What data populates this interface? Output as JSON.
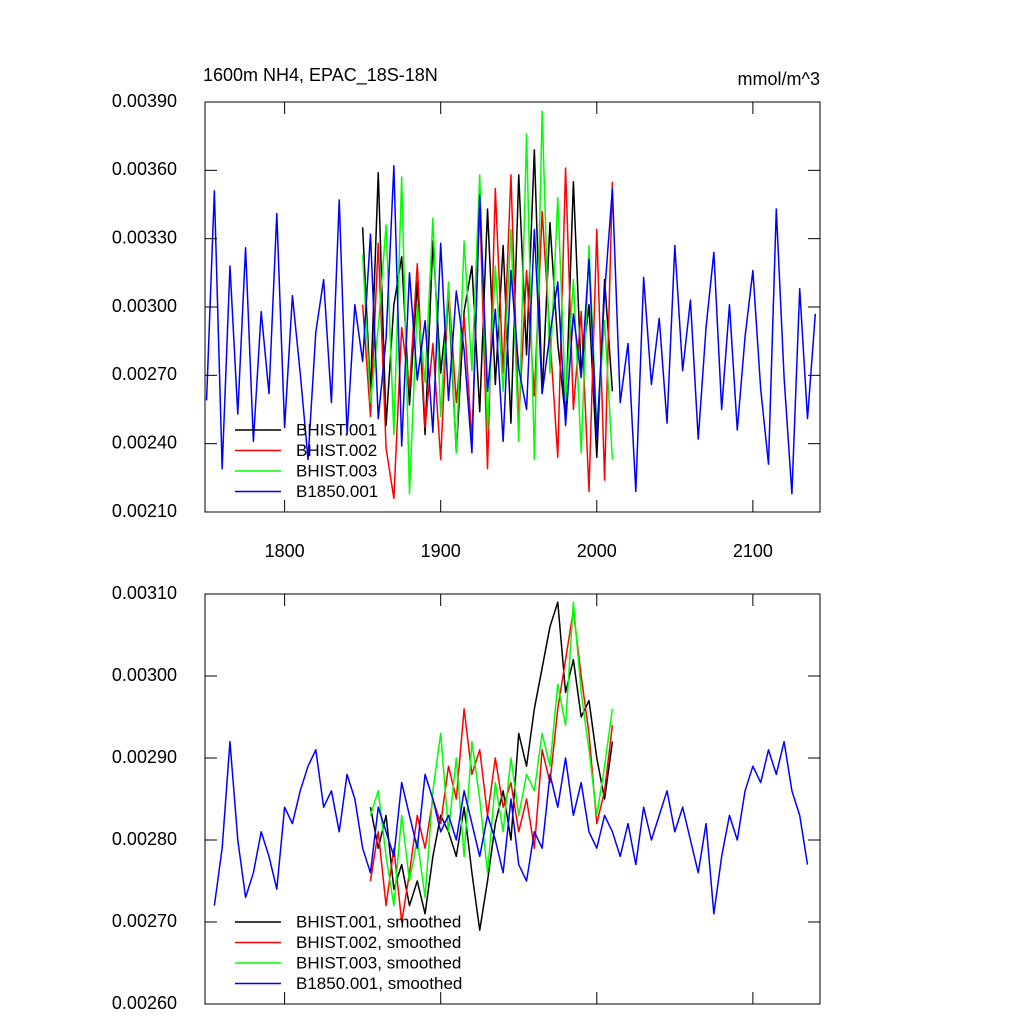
{
  "chart_data": [
    {
      "type": "line",
      "title": "1600m NH4, EPAC_18S-18N",
      "units": "mmol/m^3",
      "xlim": [
        1749,
        2143
      ],
      "xticks": [
        1800,
        1900,
        2000,
        2100
      ],
      "ylim": [
        0.0021,
        0.0039
      ],
      "yticks": [
        {
          "value": 0.0021,
          "label": "0.00210"
        },
        {
          "value": 0.0024,
          "label": "0.00240"
        },
        {
          "value": 0.0027,
          "label": "0.00270"
        },
        {
          "value": 0.003,
          "label": "0.00300"
        },
        {
          "value": 0.0033,
          "label": "0.00330"
        },
        {
          "value": 0.0036,
          "label": "0.00360"
        },
        {
          "value": 0.0039,
          "label": "0.00390"
        }
      ],
      "legend": "lower left",
      "series": [
        {
          "name": "BHIST.001",
          "color": "#000000",
          "x": [
            1850,
            1855,
            1860,
            1865,
            1870,
            1875,
            1880,
            1885,
            1890,
            1895,
            1900,
            1905,
            1910,
            1915,
            1920,
            1925,
            1930,
            1935,
            1940,
            1945,
            1950,
            1955,
            1960,
            1965,
            1970,
            1975,
            1980,
            1985,
            1990,
            1995,
            2000,
            2005,
            2010
          ],
          "values": [
            0.00335,
            0.00262,
            0.00359,
            0.00248,
            0.00301,
            0.00322,
            0.00257,
            0.00311,
            0.00244,
            0.00329,
            0.00271,
            0.00305,
            0.00236,
            0.00298,
            0.00318,
            0.00254,
            0.00343,
            0.00266,
            0.00327,
            0.00249,
            0.00358,
            0.00279,
            0.00369,
            0.00262,
            0.00337,
            0.00284,
            0.00251,
            0.00355,
            0.00271,
            0.00301,
            0.00234,
            0.00312,
            0.00263
          ]
        },
        {
          "name": "BHIST.002",
          "color": "#ff0000",
          "x": [
            1850,
            1855,
            1860,
            1865,
            1870,
            1875,
            1880,
            1885,
            1890,
            1895,
            1900,
            1905,
            1910,
            1915,
            1920,
            1925,
            1930,
            1935,
            1940,
            1945,
            1950,
            1955,
            1960,
            1965,
            1970,
            1975,
            1980,
            1985,
            1990,
            1995,
            2000,
            2005,
            2010
          ],
          "values": [
            0.00301,
            0.00252,
            0.00328,
            0.00238,
            0.00216,
            0.00291,
            0.00264,
            0.00319,
            0.00247,
            0.00284,
            0.00233,
            0.00309,
            0.00258,
            0.00296,
            0.00241,
            0.00346,
            0.00229,
            0.00352,
            0.00271,
            0.00358,
            0.00249,
            0.00316,
            0.00261,
            0.00342,
            0.00287,
            0.00234,
            0.00361,
            0.00255,
            0.00298,
            0.00219,
            0.00334,
            0.00224,
            0.00355
          ]
        },
        {
          "name": "BHIST.003",
          "color": "#00ff00",
          "x": [
            1850,
            1855,
            1860,
            1865,
            1870,
            1875,
            1880,
            1885,
            1890,
            1895,
            1900,
            1905,
            1910,
            1915,
            1920,
            1925,
            1930,
            1935,
            1940,
            1945,
            1950,
            1955,
            1960,
            1965,
            1970,
            1975,
            1980,
            1985,
            1990,
            1995,
            2000,
            2005,
            2010
          ],
          "values": [
            0.00323,
            0.00258,
            0.00291,
            0.00336,
            0.00244,
            0.00357,
            0.00218,
            0.00301,
            0.00267,
            0.00339,
            0.00252,
            0.00311,
            0.00236,
            0.00329,
            0.00272,
            0.00358,
            0.00246,
            0.00318,
            0.00263,
            0.00334,
            0.00241,
            0.00376,
            0.00233,
            0.00386,
            0.00271,
            0.00348,
            0.00259,
            0.00312,
            0.00236,
            0.00327,
            0.00247,
            0.00294,
            0.00233
          ]
        },
        {
          "name": "B1850.001",
          "color": "#0000ff",
          "x": [
            1750,
            1755,
            1760,
            1765,
            1770,
            1775,
            1780,
            1785,
            1790,
            1795,
            1800,
            1805,
            1810,
            1815,
            1820,
            1825,
            1830,
            1835,
            1840,
            1845,
            1850,
            1855,
            1860,
            1865,
            1870,
            1875,
            1880,
            1885,
            1890,
            1895,
            1900,
            1905,
            1910,
            1915,
            1920,
            1925,
            1930,
            1935,
            1940,
            1945,
            1950,
            1955,
            1960,
            1965,
            1970,
            1975,
            1980,
            1985,
            1990,
            1995,
            2000,
            2005,
            2010,
            2015,
            2020,
            2025,
            2030,
            2035,
            2040,
            2045,
            2050,
            2055,
            2060,
            2065,
            2070,
            2075,
            2080,
            2085,
            2090,
            2095,
            2100,
            2105,
            2110,
            2115,
            2120,
            2125,
            2130,
            2135,
            2140
          ],
          "values": [
            0.00259,
            0.00351,
            0.00229,
            0.00318,
            0.00253,
            0.00326,
            0.00241,
            0.00298,
            0.00262,
            0.00341,
            0.00247,
            0.00305,
            0.00271,
            0.00233,
            0.00289,
            0.00312,
            0.00258,
            0.00347,
            0.00244,
            0.00301,
            0.00276,
            0.00332,
            0.00251,
            0.00286,
            0.00362,
            0.00239,
            0.00315,
            0.00268,
            0.00294,
            0.00245,
            0.00328,
            0.00259,
            0.00307,
            0.00281,
            0.00236,
            0.00349,
            0.00263,
            0.00299,
            0.00241,
            0.00316,
            0.00273,
            0.00255,
            0.00334,
            0.00262,
            0.00288,
            0.00311,
            0.00248,
            0.00297,
            0.00269,
            0.00321,
            0.00243,
            0.00306,
            0.00352,
            0.00258,
            0.00284,
            0.00219,
            0.00313,
            0.00266,
            0.00295,
            0.00249,
            0.00327,
            0.00272,
            0.00303,
            0.00242,
            0.00291,
            0.00324,
            0.00255,
            0.00301,
            0.00246,
            0.00287,
            0.00316,
            0.00264,
            0.00231,
            0.00343,
            0.00269,
            0.00218,
            0.00308,
            0.00251,
            0.00297
          ]
        }
      ]
    },
    {
      "type": "line",
      "xlim": [
        1749,
        2143
      ],
      "xticks": [
        1800,
        1900,
        2000,
        2100
      ],
      "xtick_labels": false,
      "ylim": [
        0.0026,
        0.0031
      ],
      "yticks": [
        {
          "value": 0.0026,
          "label": "0.00260"
        },
        {
          "value": 0.0027,
          "label": "0.00270"
        },
        {
          "value": 0.0028,
          "label": "0.00280"
        },
        {
          "value": 0.0029,
          "label": "0.00290"
        },
        {
          "value": 0.003,
          "label": "0.00300"
        },
        {
          "value": 0.0031,
          "label": "0.00310"
        }
      ],
      "legend": "lower left",
      "series": [
        {
          "name": "BHIST.001, smoothed",
          "color": "#000000",
          "x": [
            1855,
            1860,
            1865,
            1870,
            1875,
            1880,
            1885,
            1890,
            1895,
            1900,
            1905,
            1910,
            1915,
            1920,
            1925,
            1930,
            1935,
            1940,
            1945,
            1950,
            1955,
            1960,
            1965,
            1970,
            1975,
            1980,
            1985,
            1990,
            1995,
            2000,
            2005,
            2010
          ],
          "values": [
            0.00284,
            0.00279,
            0.00283,
            0.00274,
            0.00277,
            0.00272,
            0.00275,
            0.00271,
            0.00278,
            0.00283,
            0.00281,
            0.00278,
            0.00284,
            0.00276,
            0.00269,
            0.00275,
            0.00282,
            0.00286,
            0.0028,
            0.00293,
            0.00289,
            0.00296,
            0.00301,
            0.00306,
            0.00309,
            0.00298,
            0.00302,
            0.00295,
            0.00297,
            0.0029,
            0.00285,
            0.00292
          ]
        },
        {
          "name": "BHIST.002, smoothed",
          "color": "#ff0000",
          "x": [
            1855,
            1860,
            1865,
            1870,
            1875,
            1880,
            1885,
            1890,
            1895,
            1900,
            1905,
            1910,
            1915,
            1920,
            1925,
            1930,
            1935,
            1940,
            1945,
            1950,
            1955,
            1960,
            1965,
            1970,
            1975,
            1980,
            1985,
            1990,
            1995,
            2000,
            2005,
            2010
          ],
          "values": [
            0.00275,
            0.00281,
            0.00272,
            0.00279,
            0.0027,
            0.00276,
            0.00283,
            0.00279,
            0.00285,
            0.00282,
            0.00289,
            0.00285,
            0.00296,
            0.00288,
            0.00291,
            0.00283,
            0.0029,
            0.00284,
            0.00287,
            0.00281,
            0.00285,
            0.00279,
            0.00291,
            0.00287,
            0.00296,
            0.00302,
            0.00308,
            0.003,
            0.00293,
            0.00282,
            0.00286,
            0.00294
          ]
        },
        {
          "name": "BHIST.003, smoothed",
          "color": "#00ff00",
          "x": [
            1855,
            1860,
            1865,
            1870,
            1875,
            1880,
            1885,
            1890,
            1895,
            1900,
            1905,
            1910,
            1915,
            1920,
            1925,
            1930,
            1935,
            1940,
            1945,
            1950,
            1955,
            1960,
            1965,
            1970,
            1975,
            1980,
            1985,
            1990,
            1995,
            2000,
            2005,
            2010
          ],
          "values": [
            0.00283,
            0.00286,
            0.00278,
            0.00272,
            0.00283,
            0.00275,
            0.0028,
            0.00273,
            0.00286,
            0.00293,
            0.00281,
            0.0029,
            0.00278,
            0.00292,
            0.00285,
            0.00276,
            0.00287,
            0.00281,
            0.0029,
            0.00283,
            0.00288,
            0.00286,
            0.00293,
            0.00289,
            0.00299,
            0.00294,
            0.00309,
            0.00298,
            0.00291,
            0.00283,
            0.00289,
            0.00296
          ]
        },
        {
          "name": "B1850.001, smoothed",
          "color": "#0000ff",
          "x": [
            1755,
            1760,
            1765,
            1770,
            1775,
            1780,
            1785,
            1790,
            1795,
            1800,
            1805,
            1810,
            1815,
            1820,
            1825,
            1830,
            1835,
            1840,
            1845,
            1850,
            1855,
            1860,
            1865,
            1870,
            1875,
            1880,
            1885,
            1890,
            1895,
            1900,
            1905,
            1910,
            1915,
            1920,
            1925,
            1930,
            1935,
            1940,
            1945,
            1950,
            1955,
            1960,
            1965,
            1970,
            1975,
            1980,
            1985,
            1990,
            1995,
            2000,
            2005,
            2010,
            2015,
            2020,
            2025,
            2030,
            2035,
            2040,
            2045,
            2050,
            2055,
            2060,
            2065,
            2070,
            2075,
            2080,
            2085,
            2090,
            2095,
            2100,
            2105,
            2110,
            2115,
            2120,
            2125,
            2130,
            2135
          ],
          "values": [
            0.00272,
            0.00279,
            0.00292,
            0.0028,
            0.00273,
            0.00276,
            0.00281,
            0.00278,
            0.00274,
            0.00284,
            0.00282,
            0.00286,
            0.00289,
            0.00291,
            0.00284,
            0.00286,
            0.00281,
            0.00288,
            0.00285,
            0.00279,
            0.00276,
            0.00284,
            0.00281,
            0.00278,
            0.00287,
            0.00283,
            0.00279,
            0.00288,
            0.00285,
            0.00281,
            0.00283,
            0.0028,
            0.00286,
            0.00282,
            0.00278,
            0.00283,
            0.0028,
            0.00276,
            0.00285,
            0.00277,
            0.00275,
            0.00281,
            0.00279,
            0.00288,
            0.00284,
            0.0029,
            0.00283,
            0.00287,
            0.00281,
            0.00279,
            0.00283,
            0.00281,
            0.00278,
            0.00282,
            0.00277,
            0.00284,
            0.0028,
            0.00283,
            0.00286,
            0.00281,
            0.00284,
            0.0028,
            0.00276,
            0.00282,
            0.00271,
            0.00278,
            0.00283,
            0.0028,
            0.00286,
            0.00289,
            0.00287,
            0.00291,
            0.00288,
            0.00292,
            0.00286,
            0.00283,
            0.00277
          ]
        }
      ]
    }
  ]
}
